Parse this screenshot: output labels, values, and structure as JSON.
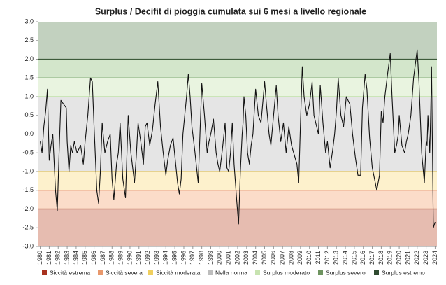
{
  "chart_data": {
    "type": "line",
    "title": "Surplus / Decifit di pioggia cumulata sui 6 mesi a livello regionale",
    "bands": [
      {
        "name": "Siccità estrema",
        "from": -3,
        "to": -2,
        "color": "#e6bcb0",
        "line_color": "#a33a26",
        "legend_color": "#a8321f"
      },
      {
        "name": "Siccità severa",
        "from": -2,
        "to": -1.5,
        "color": "#fbdcc9",
        "line_color": "#e6986e",
        "legend_color": "#e8986c"
      },
      {
        "name": "Siccità moderata",
        "from": -1.5,
        "to": -1,
        "color": "#fdf1cc",
        "line_color": "#e8c65a",
        "legend_color": "#f0cf5e"
      },
      {
        "name": "Nella norma",
        "from": -1,
        "to": 1,
        "color": "#e5e5e5",
        "line_color": null,
        "legend_color": "#bdbdbd"
      },
      {
        "name": "Surplus moderato",
        "from": 1,
        "to": 1.5,
        "color": "#e9f4e0",
        "line_color": "#b9dc9e",
        "legend_color": "#c7e3b0"
      },
      {
        "name": "Surplus severo",
        "from": 1.5,
        "to": 2,
        "color": "#d3e6cb",
        "line_color": "#6d9a5c",
        "legend_color": "#6e9460"
      },
      {
        "name": "Surplus estremo",
        "from": 2,
        "to": 3,
        "color": "#c2d1bf",
        "line_color": "#3d5a3a",
        "legend_color": "#2f4a30"
      }
    ],
    "series": [
      {
        "color": "#111111",
        "x": [
          1980.0,
          1980.2,
          1980.4,
          1980.6,
          1980.8,
          1981.0,
          1981.2,
          1981.4,
          1981.7,
          1981.9,
          1982.1,
          1982.3,
          1982.6,
          1982.9,
          1983.0,
          1983.2,
          1983.4,
          1983.6,
          1983.8,
          1984.1,
          1984.5,
          1984.8,
          1985.0,
          1985.3,
          1985.6,
          1985.8,
          1986.0,
          1986.3,
          1986.5,
          1986.7,
          1986.9,
          1987.2,
          1987.5,
          1987.8,
          1988.0,
          1988.2,
          1988.5,
          1988.7,
          1988.9,
          1989.2,
          1989.5,
          1989.8,
          1990.1,
          1990.5,
          1990.7,
          1990.9,
          1991.2,
          1991.5,
          1991.7,
          1991.9,
          1992.2,
          1992.5,
          1992.8,
          1993.1,
          1993.4,
          1993.7,
          1994.0,
          1994.2,
          1994.5,
          1994.8,
          1995.3,
          1995.5,
          1995.7,
          1995.9,
          1996.1,
          1996.3,
          1996.5,
          1996.7,
          1996.9,
          1997.2,
          1997.6,
          1998.0,
          1998.3,
          1998.6,
          1998.8,
          1999.0,
          1999.3,
          1999.6,
          1999.8,
          2000.0,
          2000.3,
          2000.6,
          2000.8,
          2001.0,
          2001.2,
          2001.4,
          2001.6,
          2001.9,
          2002.1,
          2002.3,
          2002.5,
          2002.6,
          2002.7,
          2002.9,
          2003.1,
          2003.3,
          2003.5,
          2003.7,
          2004.0,
          2004.3,
          2004.6,
          2005.0,
          2005.2,
          2005.5,
          2005.7,
          2006.0,
          2006.3,
          2006.5,
          2006.8,
          2007.1,
          2007.4,
          2007.7,
          2008.0,
          2008.6,
          2008.8,
          2009.0,
          2009.2,
          2009.4,
          2009.7,
          2010.0,
          2010.3,
          2010.5,
          2010.7,
          2011.0,
          2011.2,
          2011.5,
          2011.8,
          2012.0,
          2012.3,
          2012.6,
          2012.8,
          2013.0,
          2013.2,
          2013.5,
          2013.8,
          2014.1,
          2014.5,
          2014.8,
          2015.1,
          2015.4,
          2015.7,
          2015.9,
          2016.2,
          2016.4,
          2016.7,
          2017.0,
          2017.5,
          2017.8,
          2018.0,
          2018.2,
          2018.4,
          2018.7,
          2019.0,
          2019.2,
          2019.5,
          2019.7,
          2019.9,
          2020.0,
          2020.3,
          2020.6,
          2020.8,
          2021.0,
          2021.3,
          2021.6,
          2022.0,
          2022.2,
          2022.5,
          2022.8,
          2023.0,
          2023.1,
          2023.2,
          2023.3,
          2023.4,
          2023.5,
          2023.6,
          2023.8,
          2024.0
        ],
        "values": [
          -0.2,
          -0.5,
          0.2,
          0.6,
          1.2,
          -0.7,
          -0.3,
          0.0,
          -1.5,
          -2.05,
          -0.5,
          0.9,
          0.8,
          0.7,
          -0.2,
          -1.0,
          -0.3,
          -0.5,
          -0.2,
          -0.5,
          -0.3,
          -0.8,
          -0.2,
          0.5,
          1.5,
          1.4,
          0.2,
          -1.5,
          -1.85,
          -1.0,
          0.3,
          -0.5,
          -0.2,
          0.0,
          -1.2,
          -1.75,
          -0.8,
          -0.5,
          0.3,
          -1.2,
          -1.7,
          0.5,
          -0.5,
          -1.3,
          -0.6,
          0.3,
          -0.2,
          -0.8,
          0.2,
          0.3,
          -0.3,
          0.1,
          0.8,
          1.4,
          0.2,
          -0.5,
          -1.1,
          -0.7,
          -0.3,
          -0.1,
          -1.3,
          -1.6,
          -1.2,
          0.0,
          0.5,
          1.0,
          1.6,
          1.0,
          0.2,
          -0.4,
          -1.3,
          1.35,
          0.5,
          -0.5,
          -0.2,
          0.0,
          0.4,
          -0.5,
          -0.8,
          -1.0,
          -0.4,
          0.3,
          -0.9,
          -1.0,
          -0.5,
          0.3,
          -0.8,
          -1.8,
          -2.4,
          -1.0,
          0.0,
          0.3,
          1.0,
          0.5,
          -0.5,
          -0.8,
          -0.3,
          0.0,
          1.2,
          0.5,
          0.3,
          1.4,
          0.8,
          0.0,
          -0.3,
          0.5,
          1.3,
          0.5,
          -0.2,
          0.3,
          -0.5,
          0.2,
          -0.3,
          -0.8,
          -1.3,
          0.3,
          1.8,
          1.0,
          0.5,
          0.8,
          1.4,
          0.5,
          0.3,
          0.0,
          1.3,
          0.3,
          -0.5,
          -0.2,
          -0.9,
          -0.4,
          0.0,
          0.6,
          1.5,
          0.5,
          0.2,
          1.0,
          0.8,
          0.0,
          -0.6,
          -1.1,
          -1.1,
          0.7,
          1.6,
          1.2,
          -0.1,
          -0.9,
          -1.5,
          -1.1,
          0.6,
          0.3,
          1.0,
          1.6,
          2.15,
          1.0,
          -0.5,
          -0.3,
          0.0,
          0.5,
          -0.3,
          -0.5,
          -0.2,
          0.0,
          0.5,
          1.5,
          2.25,
          1.4,
          -0.5,
          -1.3,
          -0.2,
          -0.3,
          0.5,
          0.0,
          -0.5,
          0.5,
          1.8,
          -2.5,
          -2.35
        ]
      }
    ],
    "xlim": [
      1979.8,
      2024.2
    ],
    "xticks": [
      1980,
      1981,
      1982,
      1983,
      1984,
      1985,
      1986,
      1987,
      1988,
      1989,
      1990,
      1991,
      1992,
      1993,
      1994,
      1995,
      1996,
      1997,
      1998,
      1999,
      2000,
      2001,
      2002,
      2003,
      2004,
      2005,
      2006,
      2007,
      2008,
      2009,
      2010,
      2011,
      2012,
      2013,
      2014,
      2015,
      2016,
      2017,
      2018,
      2019,
      2020,
      2021,
      2022,
      2023,
      2024
    ],
    "ylim": [
      -3,
      3
    ],
    "yticks": [
      {
        "value": 3,
        "label": "3.0"
      },
      2.5,
      {
        "value": 2,
        "label": "2.0"
      },
      1.5,
      {
        "value": 1,
        "label": "1.0"
      },
      0.5,
      {
        "value": 0,
        "label": "0.0"
      },
      -0.5,
      {
        "value": -1,
        "label": "-1.0"
      },
      -1.5,
      {
        "value": -2,
        "label": "-2.0"
      },
      -2.5,
      {
        "value": -3,
        "label": "-3.0"
      }
    ]
  }
}
